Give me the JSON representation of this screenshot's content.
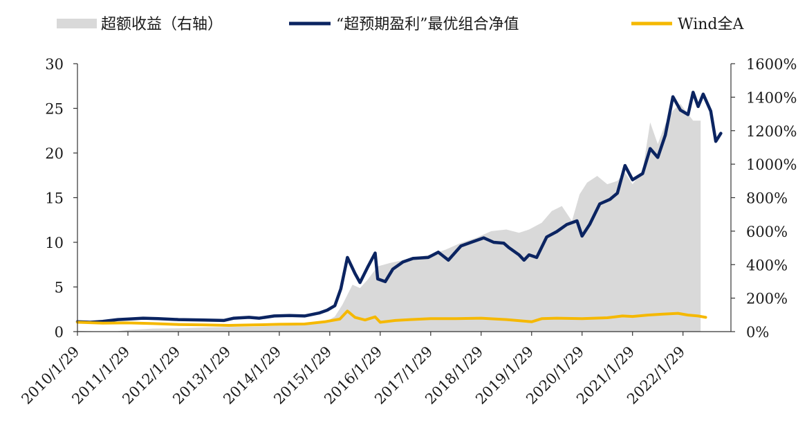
{
  "chart_data": {
    "type": "line",
    "legend": {
      "placement": "top",
      "entries": [
        {
          "label": "超额收益（右轴）",
          "kind": "area",
          "color": "#d9d9d9"
        },
        {
          "label": "“超预期盈利”最优组合净值",
          "kind": "line",
          "color": "#0b2461"
        },
        {
          "label": "Wind全A",
          "kind": "line",
          "color": "#f5b800"
        }
      ]
    },
    "y_left": {
      "min": 0,
      "max": 30,
      "ticks": [
        "0",
        "5",
        "10",
        "15",
        "20",
        "25",
        "30"
      ]
    },
    "y_right": {
      "min": 0,
      "max": 16,
      "ticks": [
        "0%",
        "200%",
        "400%",
        "600%",
        "800%",
        "1000%",
        "1200%",
        "1400%",
        "1600%"
      ]
    },
    "x_ticks": [
      "2010/1/29",
      "2011/1/29",
      "2012/1/29",
      "2013/1/29",
      "2014/1/29",
      "2015/1/29",
      "2016/1/29",
      "2017/1/29",
      "2018/1/29",
      "2019/1/29",
      "2020/1/29",
      "2021/1/29",
      "2022/1/29"
    ],
    "x_range": [
      2010.0,
      2022.95
    ],
    "grid": false,
    "series": [
      {
        "name": "超额收益（右轴）",
        "axis": "right",
        "color": "#d9d9d9",
        "points": [
          [
            2010.0,
            0.05
          ],
          [
            2010.5,
            0.0
          ],
          [
            2010.8,
            0.02
          ],
          [
            2011.0,
            0.1
          ],
          [
            2011.5,
            0.18
          ],
          [
            2012.0,
            0.2
          ],
          [
            2012.5,
            0.25
          ],
          [
            2013.0,
            0.28
          ],
          [
            2013.5,
            0.3
          ],
          [
            2014.0,
            0.35
          ],
          [
            2014.5,
            0.42
          ],
          [
            2014.9,
            0.55
          ],
          [
            2015.1,
            0.9
          ],
          [
            2015.25,
            1.6
          ],
          [
            2015.45,
            2.8
          ],
          [
            2015.6,
            2.6
          ],
          [
            2015.75,
            3.1
          ],
          [
            2015.95,
            3.9
          ],
          [
            2016.2,
            4.1
          ],
          [
            2016.5,
            4.3
          ],
          [
            2016.8,
            4.5
          ],
          [
            2017.0,
            4.6
          ],
          [
            2017.3,
            4.9
          ],
          [
            2017.6,
            5.3
          ],
          [
            2017.9,
            5.6
          ],
          [
            2018.2,
            6.0
          ],
          [
            2018.5,
            6.1
          ],
          [
            2018.75,
            5.9
          ],
          [
            2018.95,
            6.1
          ],
          [
            2019.2,
            6.5
          ],
          [
            2019.4,
            7.2
          ],
          [
            2019.6,
            7.5
          ],
          [
            2019.8,
            6.6
          ],
          [
            2019.95,
            8.2
          ],
          [
            2020.1,
            8.9
          ],
          [
            2020.3,
            9.3
          ],
          [
            2020.5,
            8.8
          ],
          [
            2020.7,
            9.0
          ],
          [
            2020.85,
            9.5
          ],
          [
            2021.0,
            8.8
          ],
          [
            2021.2,
            9.6
          ],
          [
            2021.35,
            12.5
          ],
          [
            2021.5,
            11.2
          ],
          [
            2021.65,
            12.4
          ],
          [
            2021.8,
            13.2
          ],
          [
            2021.95,
            13.6
          ],
          [
            2022.1,
            13.0
          ],
          [
            2022.2,
            12.6
          ],
          [
            2022.35,
            12.6
          ]
        ]
      },
      {
        "name": "“超预期盈利”最优组合净值",
        "axis": "left",
        "color": "#0b2461",
        "points": [
          [
            2010.0,
            1.1
          ],
          [
            2010.25,
            1.05
          ],
          [
            2010.5,
            1.15
          ],
          [
            2010.8,
            1.35
          ],
          [
            2011.0,
            1.4
          ],
          [
            2011.3,
            1.5
          ],
          [
            2011.6,
            1.45
          ],
          [
            2012.0,
            1.35
          ],
          [
            2012.5,
            1.3
          ],
          [
            2012.9,
            1.25
          ],
          [
            2013.1,
            1.5
          ],
          [
            2013.4,
            1.6
          ],
          [
            2013.6,
            1.5
          ],
          [
            2013.9,
            1.75
          ],
          [
            2014.2,
            1.8
          ],
          [
            2014.5,
            1.75
          ],
          [
            2014.8,
            2.1
          ],
          [
            2014.95,
            2.4
          ],
          [
            2015.1,
            2.9
          ],
          [
            2015.22,
            4.8
          ],
          [
            2015.35,
            8.3
          ],
          [
            2015.5,
            6.5
          ],
          [
            2015.6,
            5.5
          ],
          [
            2015.75,
            7.2
          ],
          [
            2015.9,
            8.8
          ],
          [
            2015.95,
            5.9
          ],
          [
            2016.1,
            5.6
          ],
          [
            2016.25,
            7.0
          ],
          [
            2016.45,
            7.8
          ],
          [
            2016.65,
            8.2
          ],
          [
            2016.95,
            8.3
          ],
          [
            2017.15,
            8.9
          ],
          [
            2017.35,
            8.0
          ],
          [
            2017.6,
            9.6
          ],
          [
            2017.85,
            10.1
          ],
          [
            2018.05,
            10.5
          ],
          [
            2018.25,
            10.0
          ],
          [
            2018.45,
            9.9
          ],
          [
            2018.55,
            9.4
          ],
          [
            2018.75,
            8.6
          ],
          [
            2018.85,
            8.0
          ],
          [
            2018.95,
            8.6
          ],
          [
            2019.1,
            8.3
          ],
          [
            2019.3,
            10.6
          ],
          [
            2019.5,
            11.2
          ],
          [
            2019.7,
            12.0
          ],
          [
            2019.9,
            12.4
          ],
          [
            2020.0,
            10.7
          ],
          [
            2020.15,
            12.0
          ],
          [
            2020.35,
            14.3
          ],
          [
            2020.55,
            14.8
          ],
          [
            2020.7,
            15.5
          ],
          [
            2020.85,
            18.6
          ],
          [
            2021.0,
            17.0
          ],
          [
            2021.2,
            17.7
          ],
          [
            2021.35,
            20.5
          ],
          [
            2021.5,
            19.5
          ],
          [
            2021.65,
            22.0
          ],
          [
            2021.8,
            26.3
          ],
          [
            2021.95,
            24.8
          ],
          [
            2022.1,
            24.3
          ],
          [
            2022.2,
            26.8
          ],
          [
            2022.3,
            25.2
          ],
          [
            2022.4,
            26.6
          ],
          [
            2022.55,
            24.7
          ],
          [
            2022.65,
            21.3
          ],
          [
            2022.75,
            22.2
          ]
        ]
      },
      {
        "name": "Wind全A",
        "axis": "left",
        "color": "#f5b800",
        "points": [
          [
            2010.0,
            1.05
          ],
          [
            2010.5,
            0.95
          ],
          [
            2011.0,
            0.98
          ],
          [
            2011.5,
            0.9
          ],
          [
            2012.0,
            0.8
          ],
          [
            2012.5,
            0.75
          ],
          [
            2013.0,
            0.7
          ],
          [
            2013.5,
            0.75
          ],
          [
            2014.0,
            0.82
          ],
          [
            2014.5,
            0.85
          ],
          [
            2014.9,
            1.1
          ],
          [
            2015.2,
            1.4
          ],
          [
            2015.35,
            2.3
          ],
          [
            2015.5,
            1.6
          ],
          [
            2015.7,
            1.3
          ],
          [
            2015.9,
            1.65
          ],
          [
            2016.0,
            1.05
          ],
          [
            2016.3,
            1.25
          ],
          [
            2016.6,
            1.35
          ],
          [
            2017.0,
            1.45
          ],
          [
            2017.5,
            1.45
          ],
          [
            2018.0,
            1.5
          ],
          [
            2018.5,
            1.35
          ],
          [
            2018.8,
            1.2
          ],
          [
            2019.0,
            1.1
          ],
          [
            2019.2,
            1.45
          ],
          [
            2019.5,
            1.5
          ],
          [
            2020.0,
            1.45
          ],
          [
            2020.5,
            1.55
          ],
          [
            2020.8,
            1.75
          ],
          [
            2021.0,
            1.7
          ],
          [
            2021.3,
            1.85
          ],
          [
            2021.6,
            1.95
          ],
          [
            2021.9,
            2.05
          ],
          [
            2022.1,
            1.85
          ],
          [
            2022.3,
            1.75
          ],
          [
            2022.45,
            1.6
          ]
        ]
      }
    ]
  }
}
